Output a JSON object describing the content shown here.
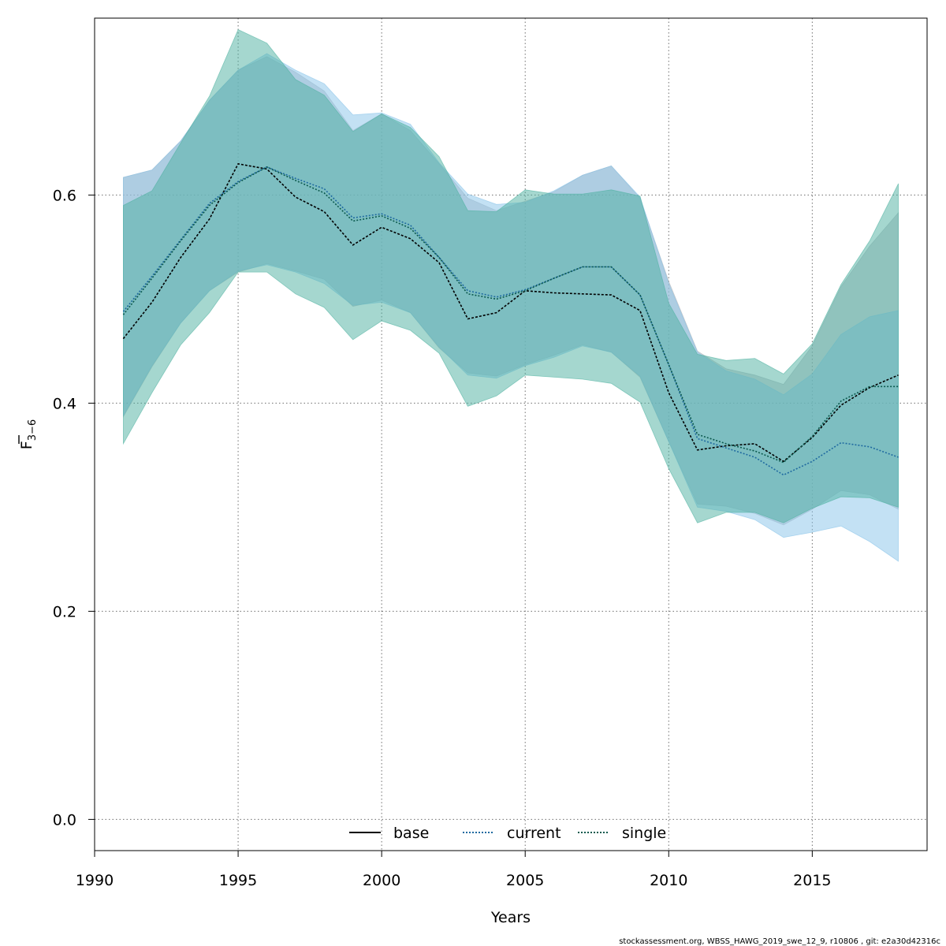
{
  "colors": {
    "base_band": "#aab0b8",
    "current_band": "#87c3ea",
    "single_band": "#4bb09f",
    "base_line": "#000000",
    "current_line": "#1f6aa0",
    "single_line": "#0c5a4e",
    "grid": "#6e6e6e"
  },
  "footer": "stockassessment.org, WBSS_HAWG_2019_swe_12_9, r10806 , git: e2a30d42316c",
  "chart_data": {
    "type": "line",
    "xlabel": "Years",
    "ylabel": {
      "main": "F",
      "subscript": "3−6",
      "overline": true
    },
    "xlim": [
      1990,
      2019
    ],
    "ylim": [
      -0.03,
      0.77
    ],
    "x_ticks": [
      1990,
      1995,
      2000,
      2005,
      2010,
      2015
    ],
    "y_ticks": [
      0.0,
      0.2,
      0.4,
      0.6
    ],
    "y_tick_labels": [
      "0.0",
      "0.2",
      "0.4",
      "0.6"
    ],
    "grid": true,
    "legend_position": "bottom",
    "x": [
      1991,
      1992,
      1993,
      1994,
      1995,
      1996,
      1997,
      1998,
      1999,
      2000,
      2001,
      2002,
      2003,
      2004,
      2005,
      2006,
      2007,
      2008,
      2009,
      2010,
      2011,
      2012,
      2013,
      2014,
      2015,
      2016,
      2017,
      2018
    ],
    "series": [
      {
        "name": "base",
        "line_style": "solid",
        "band_color_key": "base_band",
        "line_color_key": "base_line",
        "values": [
          0.462,
          0.497,
          0.54,
          0.577,
          0.63,
          0.625,
          0.598,
          0.584,
          0.552,
          0.569,
          0.558,
          0.535,
          0.481,
          0.487,
          0.508,
          0.506,
          0.505,
          0.504,
          0.489,
          0.41,
          0.355,
          0.359,
          0.361,
          0.344,
          0.367,
          0.398,
          0.415,
          0.427
        ],
        "upper": [
          0.617,
          0.624,
          0.652,
          0.691,
          0.72,
          0.733,
          0.718,
          0.7,
          0.662,
          0.678,
          0.662,
          0.63,
          0.597,
          0.585,
          0.594,
          0.603,
          0.619,
          0.628,
          0.597,
          0.517,
          0.45,
          0.433,
          0.427,
          0.418,
          0.455,
          0.512,
          0.551,
          0.583
        ],
        "lower": [
          0.387,
          0.435,
          0.477,
          0.508,
          0.526,
          0.534,
          0.527,
          0.519,
          0.493,
          0.499,
          0.487,
          0.453,
          0.429,
          0.426,
          0.437,
          0.446,
          0.456,
          0.449,
          0.425,
          0.363,
          0.303,
          0.301,
          0.294,
          0.283,
          0.298,
          0.316,
          0.312,
          0.298
        ]
      },
      {
        "name": "current",
        "line_style": "dotted",
        "band_color_key": "current_band",
        "line_color_key": "current_line",
        "values": [
          0.488,
          0.522,
          0.557,
          0.592,
          0.613,
          0.627,
          0.616,
          0.606,
          0.578,
          0.582,
          0.571,
          0.54,
          0.508,
          0.502,
          0.509,
          0.52,
          0.531,
          0.531,
          0.504,
          0.437,
          0.366,
          0.357,
          0.348,
          0.331,
          0.344,
          0.362,
          0.358,
          0.348
        ],
        "upper": [
          0.617,
          0.624,
          0.652,
          0.691,
          0.72,
          0.736,
          0.72,
          0.707,
          0.677,
          0.679,
          0.668,
          0.631,
          0.601,
          0.591,
          0.593,
          0.604,
          0.619,
          0.628,
          0.598,
          0.515,
          0.449,
          0.431,
          0.423,
          0.408,
          0.428,
          0.466,
          0.483,
          0.489
        ],
        "lower": [
          0.388,
          0.436,
          0.477,
          0.508,
          0.527,
          0.533,
          0.526,
          0.515,
          0.494,
          0.497,
          0.487,
          0.454,
          0.427,
          0.424,
          0.436,
          0.444,
          0.455,
          0.449,
          0.426,
          0.363,
          0.3,
          0.296,
          0.288,
          0.271,
          0.276,
          0.282,
          0.267,
          0.248
        ]
      },
      {
        "name": "single",
        "line_style": "dotted",
        "band_color_key": "single_band",
        "line_color_key": "single_line",
        "values": [
          0.485,
          0.52,
          0.556,
          0.59,
          0.612,
          0.627,
          0.614,
          0.602,
          0.575,
          0.58,
          0.568,
          0.54,
          0.505,
          0.5,
          0.508,
          0.52,
          0.531,
          0.531,
          0.504,
          0.437,
          0.37,
          0.361,
          0.354,
          0.343,
          0.368,
          0.402,
          0.416,
          0.416
        ],
        "upper": [
          0.59,
          0.604,
          0.65,
          0.695,
          0.759,
          0.746,
          0.711,
          0.696,
          0.661,
          0.678,
          0.665,
          0.637,
          0.585,
          0.584,
          0.605,
          0.601,
          0.601,
          0.605,
          0.599,
          0.496,
          0.447,
          0.441,
          0.443,
          0.428,
          0.457,
          0.514,
          0.556,
          0.611
        ],
        "lower": [
          0.361,
          0.41,
          0.456,
          0.487,
          0.526,
          0.526,
          0.505,
          0.492,
          0.461,
          0.479,
          0.47,
          0.448,
          0.397,
          0.407,
          0.427,
          0.425,
          0.423,
          0.419,
          0.401,
          0.337,
          0.285,
          0.295,
          0.295,
          0.285,
          0.299,
          0.31,
          0.309,
          0.3
        ]
      }
    ]
  }
}
